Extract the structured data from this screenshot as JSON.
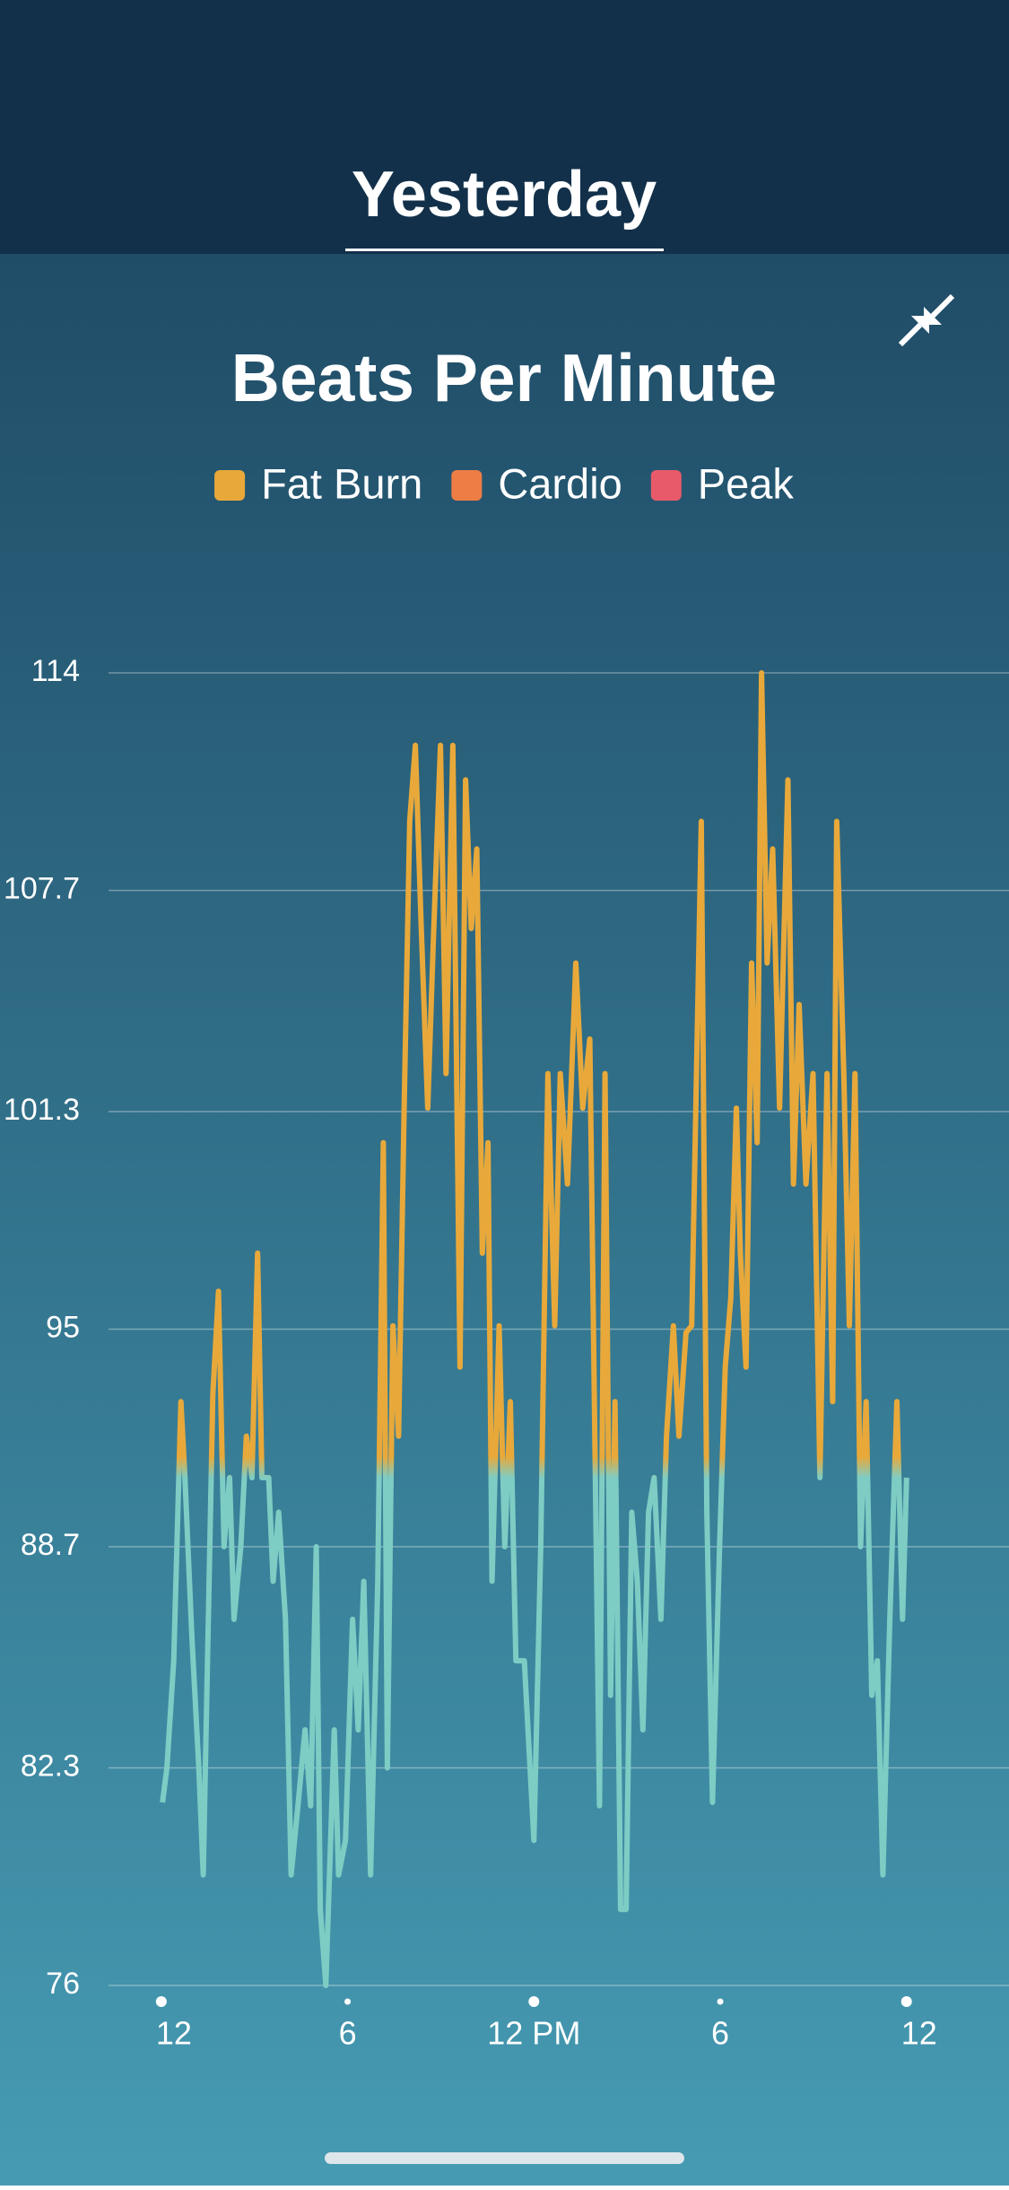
{
  "header": {
    "tab": "Yesterday"
  },
  "chart_data": {
    "type": "line",
    "title": "Beats Per Minute",
    "legend": [
      {
        "name": "Fat Burn",
        "color": "#e8a93a"
      },
      {
        "name": "Cardio",
        "color": "#ee7d45"
      },
      {
        "name": "Peak",
        "color": "#e85a6a"
      }
    ],
    "x": [
      0.04,
      0.18,
      0.4,
      0.63,
      0.76,
      0.99,
      1.21,
      1.35,
      1.66,
      1.84,
      2.02,
      2.2,
      2.34,
      2.56,
      2.74,
      2.92,
      3.1,
      3.24,
      3.46,
      3.6,
      3.78,
      4.0,
      4.18,
      4.4,
      4.63,
      4.81,
      4.99,
      5.12,
      5.3,
      5.57,
      5.71,
      5.93,
      6.16,
      6.34,
      6.52,
      6.74,
      6.97,
      7.15,
      7.28,
      7.46,
      7.64,
      7.82,
      8.0,
      8.18,
      8.36,
      8.58,
      8.76,
      8.99,
      9.17,
      9.39,
      9.62,
      9.8,
      9.98,
      10.16,
      10.34,
      10.52,
      10.65,
      10.88,
      11.06,
      11.24,
      11.42,
      11.69,
      12.0,
      12.22,
      12.45,
      12.67,
      12.85,
      13.08,
      13.35,
      13.57,
      13.8,
      14.11,
      14.29,
      14.47,
      14.61,
      14.79,
      14.97,
      15.15,
      15.33,
      15.51,
      15.69,
      15.87,
      16.09,
      16.27,
      16.49,
      16.67,
      16.9,
      17.08,
      17.39,
      17.57,
      17.75,
      17.98,
      18.16,
      18.34,
      18.52,
      18.65,
      18.83,
      19.01,
      19.19,
      19.33,
      19.51,
      19.69,
      19.91,
      20.18,
      20.36,
      20.54,
      20.76,
      20.99,
      21.21,
      21.44,
      21.62,
      21.75,
      21.98,
      22.16,
      22.34,
      22.52,
      22.7,
      22.88,
      23.06,
      23.24,
      23.46,
      23.69,
      23.87,
      24.0
    ],
    "values": [
      81.3,
      82.3,
      85.4,
      92.9,
      90.7,
      86.0,
      82.3,
      79.2,
      93.1,
      96.1,
      88.7,
      90.7,
      86.6,
      88.7,
      91.9,
      90.7,
      97.2,
      90.7,
      90.7,
      87.7,
      89.7,
      86.6,
      79.2,
      81.2,
      83.4,
      81.2,
      88.7,
      78.2,
      76,
      83.4,
      79.2,
      80.2,
      86.6,
      83.4,
      87.7,
      79.2,
      87.7,
      100.4,
      82.3,
      95.1,
      91.9,
      101.4,
      109.7,
      111.9,
      106.9,
      101.4,
      106.2,
      111.9,
      102.4,
      111.9,
      93.9,
      110.9,
      106.6,
      108.9,
      97.2,
      100.4,
      87.7,
      95.1,
      88.7,
      92.9,
      85.4,
      85.4,
      80.2,
      88.7,
      102.4,
      95.1,
      102.4,
      99.2,
      105.6,
      101.4,
      103.4,
      81.2,
      102.4,
      84.4,
      92.9,
      78.2,
      78.2,
      89.7,
      87.7,
      83.4,
      89.7,
      90.7,
      86.6,
      91.9,
      95.1,
      91.9,
      94.9,
      95.1,
      109.7,
      89.7,
      81.3,
      88.7,
      93.9,
      95.9,
      101.4,
      97.2,
      93.9,
      105.6,
      100.4,
      114,
      105.6,
      108.9,
      101.4,
      110.9,
      99.2,
      104.4,
      99.2,
      102.4,
      90.7,
      102.4,
      92.9,
      109.7,
      102.4,
      95.1,
      102.4,
      88.7,
      92.9,
      84.4,
      85.4,
      79.2,
      86.6,
      92.9,
      86.6,
      90.7
    ],
    "color": "#7ecdc4",
    "color_above": "#e8a93a",
    "threshold": 91,
    "xlim": [
      -1.7,
      27.3
    ],
    "xticks": [
      {
        "value": 0,
        "label": "12"
      },
      {
        "value": 6,
        "label": "6"
      },
      {
        "value": 12,
        "label": "12 PM"
      },
      {
        "value": 18,
        "label": "6"
      },
      {
        "value": 24,
        "label": "12"
      }
    ],
    "ylim": [
      76,
      114
    ],
    "yticks": [
      76,
      82.3,
      88.7,
      95,
      101.3,
      107.7,
      114
    ],
    "grid": true
  }
}
